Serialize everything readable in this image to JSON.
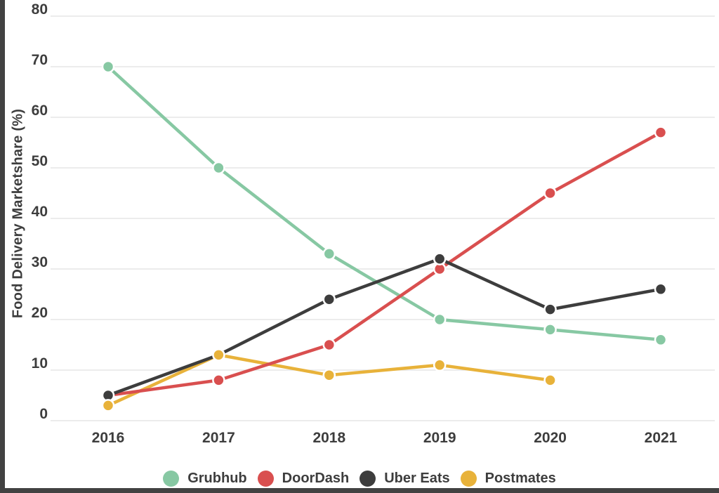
{
  "window": {
    "background": "#ffffff",
    "left_edge_color": "#424242",
    "bottom_edge_color": "#424242"
  },
  "chart_data": {
    "type": "line",
    "title": "",
    "xlabel": "",
    "ylabel": "Food Delivery Marketshare (%)",
    "categories": [
      "2016",
      "2017",
      "2018",
      "2019",
      "2020",
      "2021"
    ],
    "y_ticks": [
      0,
      10,
      20,
      30,
      40,
      50,
      60,
      70,
      80
    ],
    "ylim": [
      0,
      80
    ],
    "grid": true,
    "marker": "circle",
    "legend_position": "bottom",
    "gridline_color": "#e0e0e0",
    "tick_color": "#3d3d3d",
    "series": [
      {
        "name": "Grubhub",
        "color": "#87c8a3",
        "values": [
          70,
          50,
          33,
          20,
          18,
          16
        ]
      },
      {
        "name": "DoorDash",
        "color": "#d94f4f",
        "values": [
          5,
          8,
          15,
          30,
          45,
          57
        ]
      },
      {
        "name": "Uber Eats",
        "color": "#3d3d3d",
        "values": [
          5,
          13,
          24,
          32,
          22,
          26
        ]
      },
      {
        "name": "Postmates",
        "color": "#e8b23a",
        "values": [
          3,
          13,
          9,
          11,
          8,
          null
        ]
      }
    ]
  }
}
